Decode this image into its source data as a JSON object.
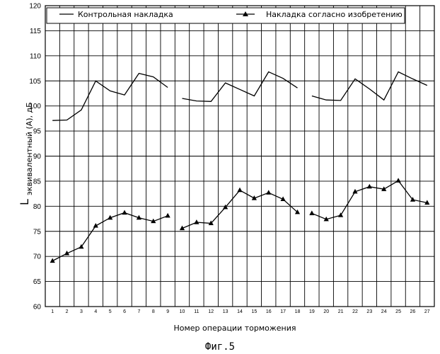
{
  "chart_data": {
    "type": "line",
    "xlabel": "Номер операции торможения",
    "ylabel_main": "L",
    "ylabel_sub": "эквивалентный (A), дБ",
    "caption": "Фиг.5",
    "ylim": [
      60,
      120
    ],
    "yticks": [
      60,
      65,
      70,
      75,
      80,
      85,
      90,
      95,
      100,
      105,
      110,
      115,
      120
    ],
    "grid": true,
    "legend_position": "top",
    "x": [
      1,
      2,
      3,
      4,
      5,
      6,
      7,
      8,
      9,
      10,
      11,
      12,
      13,
      14,
      15,
      16,
      17,
      18,
      19,
      20,
      21,
      22,
      23,
      24,
      25,
      26,
      27
    ],
    "groups": [
      [
        1,
        9
      ],
      [
        10,
        18
      ],
      [
        19,
        27
      ]
    ],
    "series": [
      {
        "name": "Контрольная накладка",
        "marker": "none",
        "color": "#000000",
        "values": [
          97.1,
          97.2,
          99.2,
          105.0,
          103.0,
          102.2,
          106.5,
          105.8,
          103.7,
          101.5,
          101.0,
          100.9,
          104.6,
          103.3,
          102.0,
          106.8,
          105.5,
          103.6,
          102.0,
          101.2,
          101.1,
          105.4,
          103.4,
          101.2,
          106.8,
          105.4,
          104.1
        ]
      },
      {
        "name": "Накладка согласно изобретению",
        "marker": "triangle",
        "color": "#000000",
        "values": [
          69.1,
          70.6,
          71.9,
          76.1,
          77.7,
          78.7,
          77.7,
          77.0,
          78.1,
          75.6,
          76.8,
          76.6,
          79.8,
          83.2,
          81.6,
          82.7,
          81.4,
          78.8,
          78.6,
          77.4,
          78.2,
          82.9,
          83.9,
          83.4,
          85.1,
          81.3,
          80.7
        ]
      }
    ]
  }
}
